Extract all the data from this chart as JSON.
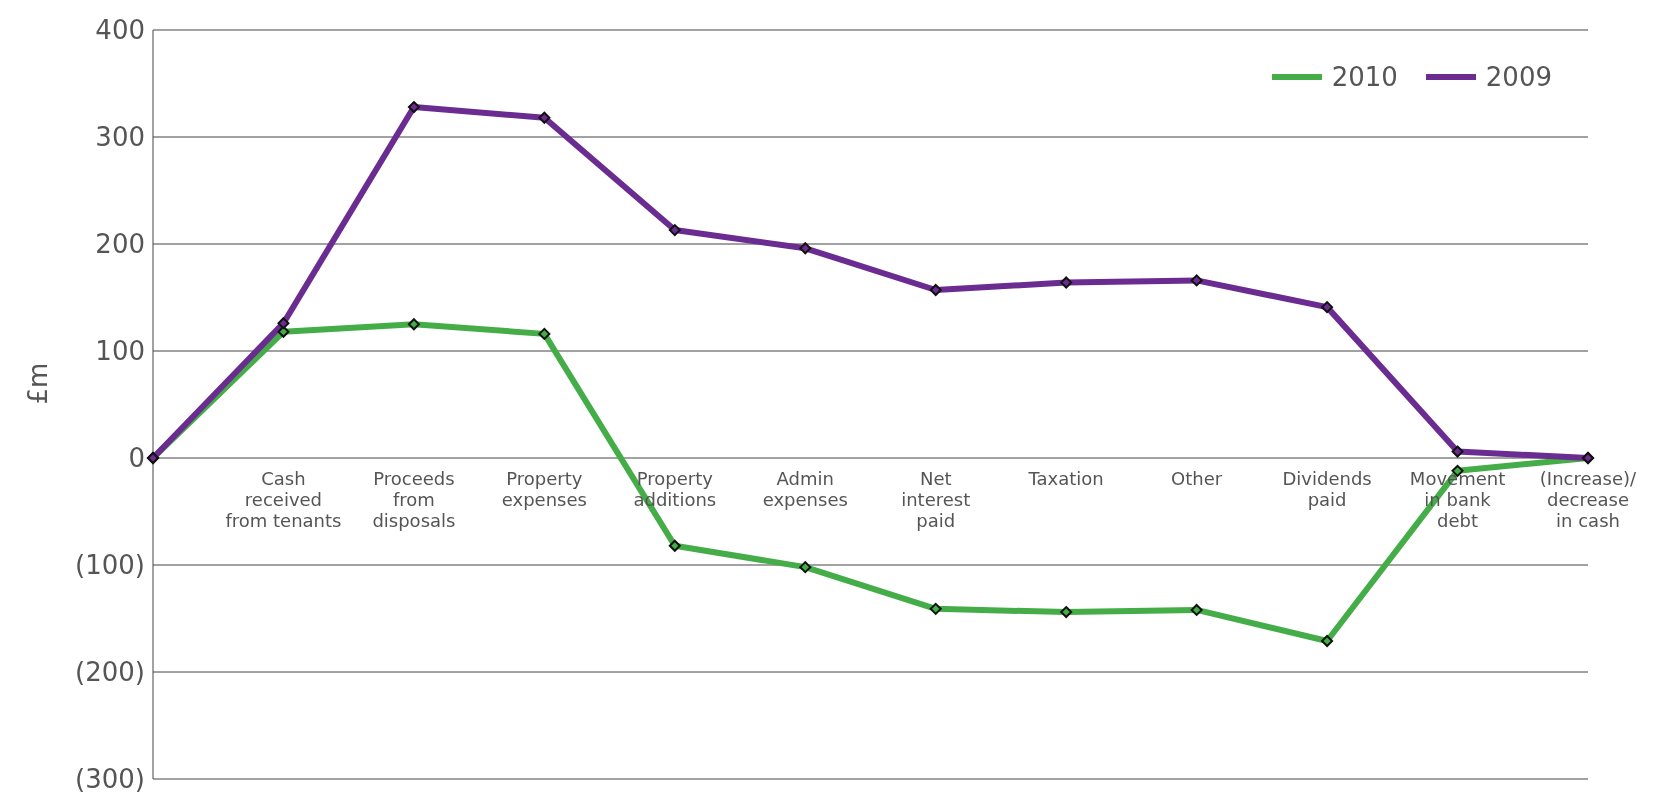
{
  "chart_data": {
    "type": "line",
    "ylabel": "£m",
    "categories": [
      null,
      "Cash\nreceived\nfrom tenants",
      "Proceeds\nfrom\ndisposals",
      "Property\nexpenses",
      "Property\nadditions",
      "Admin\nexpenses",
      "Net\ninterest\npaid",
      "Taxation",
      "Other",
      "Dividends\npaid",
      "Movement\nin bank\ndebt",
      "(Increase)/\ndecrease\nin cash"
    ],
    "series": [
      {
        "name": "2010",
        "color": "#45ad48",
        "values": [
          0,
          118,
          125,
          116,
          -82,
          -102,
          -141,
          -144,
          -142,
          -171,
          -12,
          0
        ]
      },
      {
        "name": "2009",
        "color": "#6a2c91",
        "values": [
          0,
          126,
          328,
          318,
          213,
          196,
          157,
          164,
          166,
          141,
          6,
          0
        ]
      }
    ],
    "ylim": [
      -300,
      400
    ],
    "yticks": [
      {
        "value": -300,
        "label": "(300)"
      },
      {
        "value": -200,
        "label": "(200)"
      },
      {
        "value": -100,
        "label": "(100)"
      },
      0,
      100,
      200,
      300,
      400
    ],
    "grid": "y",
    "legend": "top right",
    "marker": "diamond",
    "line_style": "solid"
  }
}
